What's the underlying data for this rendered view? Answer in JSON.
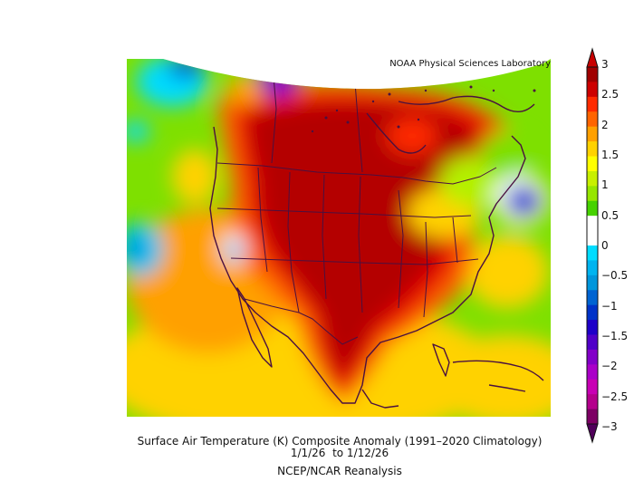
{
  "credit": "NOAA Physical Sciences Laboratory",
  "caption": {
    "title": "Surface Air Temperature (K) Composite Anomaly (1991–2020 Climatology)",
    "dates": "1/1/26  to 1/12/26",
    "source": "NCEP/NCAR Reanalysis"
  },
  "colorbar": {
    "labels": [
      "3",
      "2.5",
      "2",
      "1.5",
      "1",
      "0.5",
      "0",
      "−0.5",
      "−1",
      "−1.5",
      "−2",
      "−2.5",
      "−3"
    ],
    "colors": [
      "#a00000",
      "#cd0000",
      "#ff2a00",
      "#ff6400",
      "#ffa000",
      "#ffd200",
      "#ffff00",
      "#c8f000",
      "#96e600",
      "#46d200",
      "#ffffff",
      "#ffffff",
      "#00dcff",
      "#00b4f0",
      "#0096dc",
      "#0064d2",
      "#0032c8",
      "#1e00c8",
      "#5000c8",
      "#8200c8",
      "#aa00c8",
      "#c800b4",
      "#b4008c",
      "#7d0064"
    ],
    "min_color": "#50005a",
    "max_color": "#c80000"
  }
}
